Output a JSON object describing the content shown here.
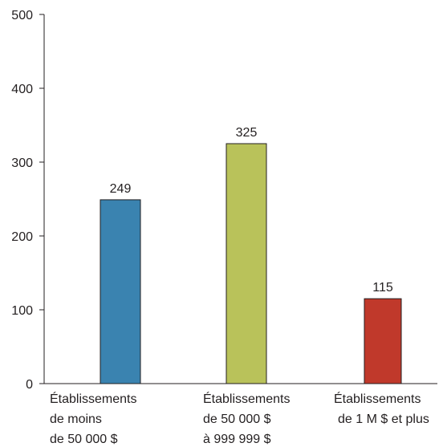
{
  "chart_data": {
    "type": "bar",
    "categories": [
      [
        "Établissements",
        "de moins",
        "de 50 000 $"
      ],
      [
        "Établissements",
        "de 50 000 $",
        "à 999 999 $"
      ],
      [
        "Établissements",
        "de 1 M $ et plus"
      ]
    ],
    "values": [
      249,
      325,
      115
    ],
    "data_labels": [
      "249",
      "325",
      "115"
    ],
    "colors": [
      "#3a83b0",
      "#b9c25a",
      "#c0392b"
    ],
    "yticks": [
      "0",
      "100",
      "200",
      "300",
      "400",
      "500"
    ],
    "ylim": [
      0,
      500
    ],
    "grid": false,
    "legend": "none"
  }
}
